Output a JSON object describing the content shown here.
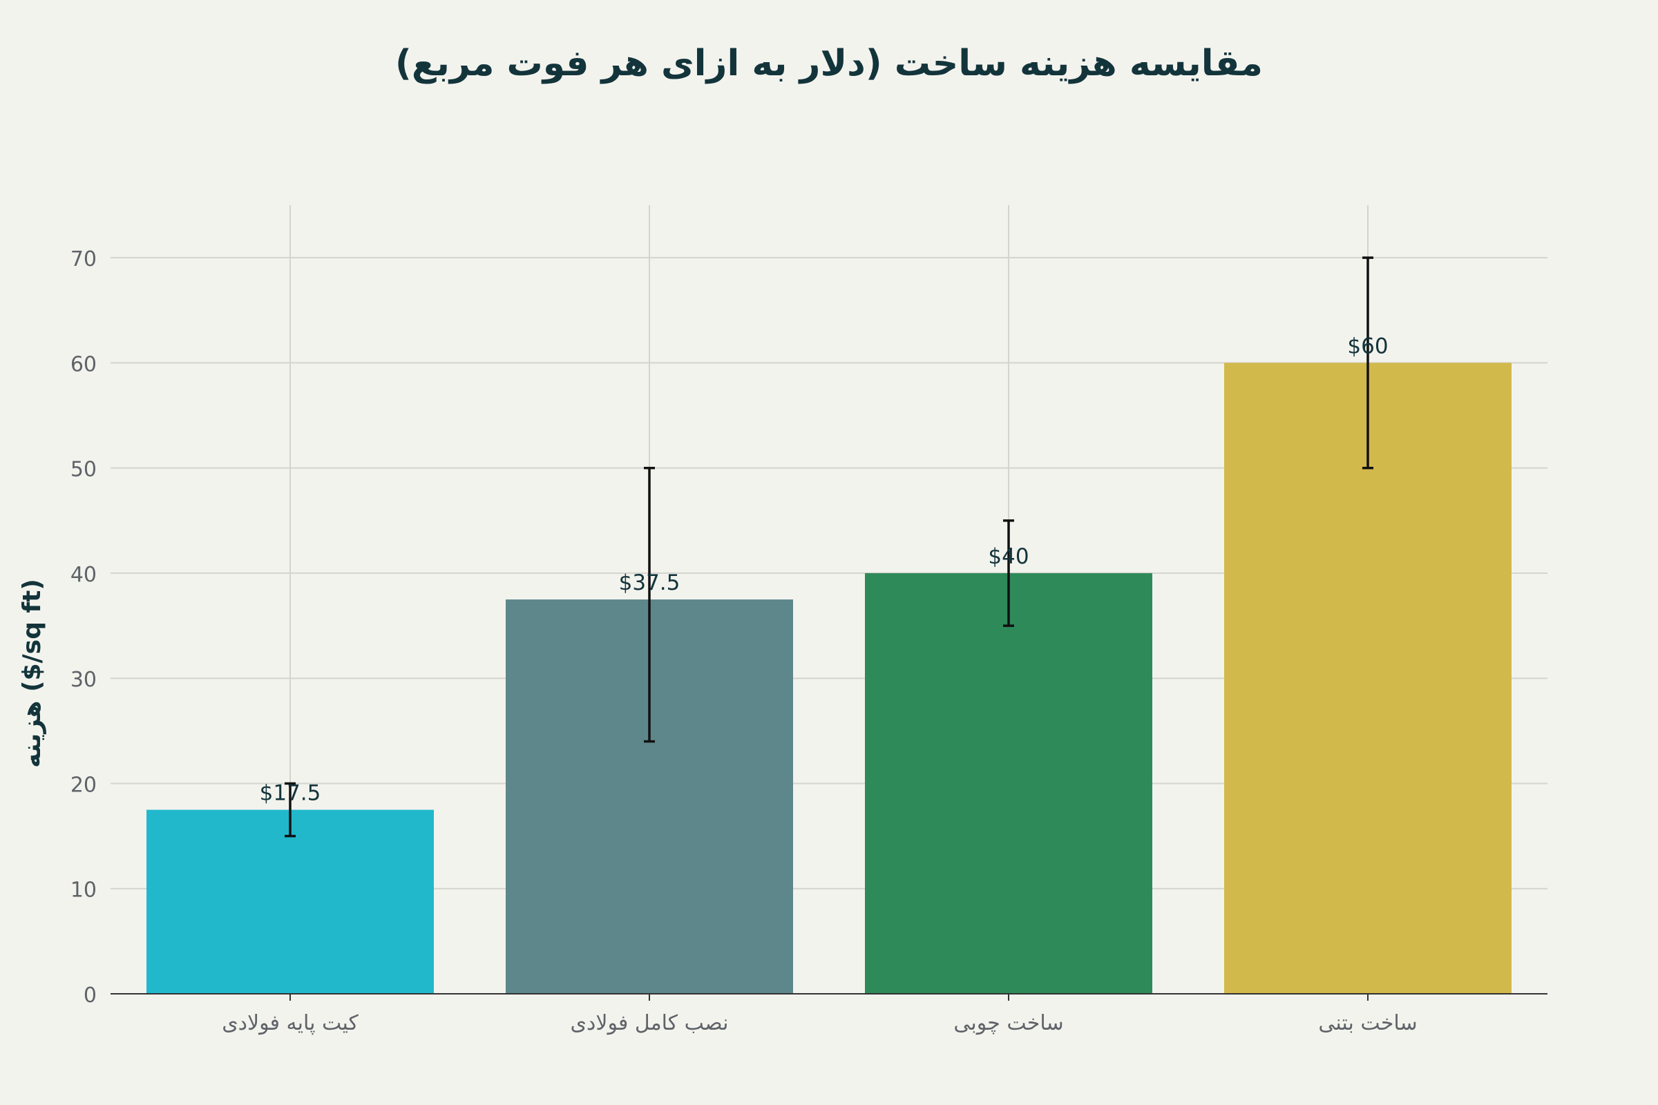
{
  "chart_data": {
    "type": "bar",
    "title": "مقایسه هزینه ساخت (دلار به ازای هر فوت مربع)",
    "xlabel": "",
    "ylabel": "هزینه ($/sq ft)",
    "categories": [
      "کیت پایه فولادی",
      "نصب کامل فولادی",
      "ساخت چوبی",
      "ساخت بتنی"
    ],
    "values": [
      17.5,
      37.5,
      40,
      60
    ],
    "error_low": [
      15,
      24,
      35,
      50
    ],
    "error_high": [
      20,
      50,
      45,
      70
    ],
    "value_labels": [
      "$17.5",
      "$37.5",
      "$40",
      "$60"
    ],
    "colors": [
      "#21b8cc",
      "#5e878c",
      "#2f8a5a",
      "#d2b94c"
    ],
    "ylim": [
      0,
      75
    ],
    "yticks": [
      0,
      10,
      20,
      30,
      40,
      50,
      60,
      70
    ],
    "grid": true,
    "legend": "none"
  }
}
